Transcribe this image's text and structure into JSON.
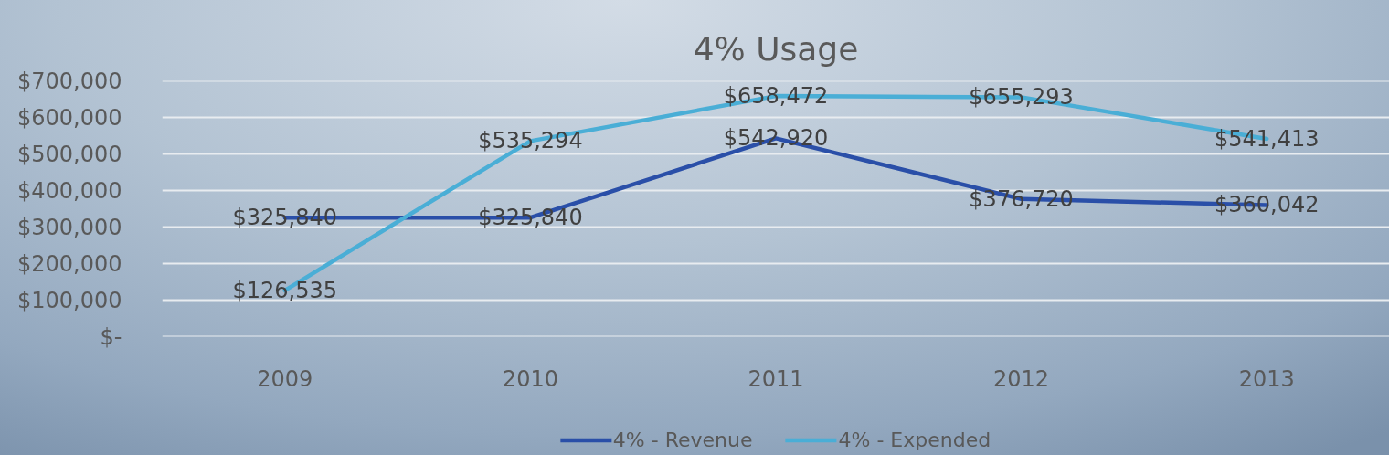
{
  "chart_data": {
    "type": "line",
    "title": "4% Usage",
    "categories": [
      "2009",
      "2010",
      "2011",
      "2012",
      "2013"
    ],
    "series": [
      {
        "name": "4% - Revenue",
        "color": "#2a4fa8",
        "values": [
          325840,
          325840,
          542920,
          376720,
          360042
        ],
        "value_labels": [
          "$325,840",
          "$325,840",
          "$542,920",
          "$376,720",
          "$360,042"
        ]
      },
      {
        "name": "4% - Expended",
        "color": "#4aaed6",
        "values": [
          126535,
          535294,
          658472,
          655293,
          541413
        ],
        "value_labels": [
          "$126,535",
          "$535,294",
          "$658,472",
          "$655,293",
          "$541,413"
        ]
      }
    ],
    "ylim": [
      0,
      700000
    ],
    "yticks": [
      {
        "value": 0,
        "label": "$-"
      },
      {
        "value": 100000,
        "label": "$100,000"
      },
      {
        "value": 200000,
        "label": "$200,000"
      },
      {
        "value": 300000,
        "label": "$300,000"
      },
      {
        "value": 400000,
        "label": "$400,000"
      },
      {
        "value": 500000,
        "label": "$500,000"
      },
      {
        "value": 600000,
        "label": "$600,000"
      },
      {
        "value": 700000,
        "label": "$700,000"
      }
    ],
    "grid": "y",
    "legend": "bottom",
    "line_style": "solid"
  }
}
